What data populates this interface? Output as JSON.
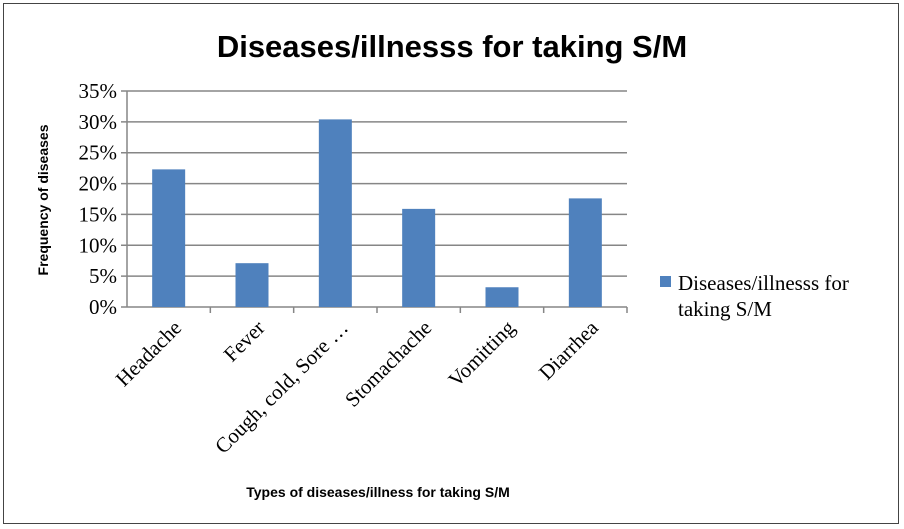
{
  "chart_data": {
    "type": "bar",
    "title": "Diseases/illnesss for taking S/M",
    "xlabel": "Types of diseases/illness for taking S/M",
    "ylabel": "Frequency of diseases",
    "categories": [
      "Headache",
      "Fever",
      "Cough, cold, Sore …",
      "Stomachache",
      "Vomitting",
      "Diarrhea"
    ],
    "series": [
      {
        "name": "Diseases/illnesss for taking S/M",
        "values": [
          22.3,
          7.1,
          30.4,
          15.9,
          3.2,
          17.6
        ],
        "color": "#4f81bd"
      }
    ],
    "ylim": [
      0,
      35
    ],
    "yticks": [
      "0%",
      "5%",
      "10%",
      "15%",
      "20%",
      "25%",
      "30%",
      "35%"
    ],
    "grid": true,
    "legend": "right",
    "legend_lines": [
      "Diseases/illnesss for",
      "taking S/M"
    ]
  }
}
